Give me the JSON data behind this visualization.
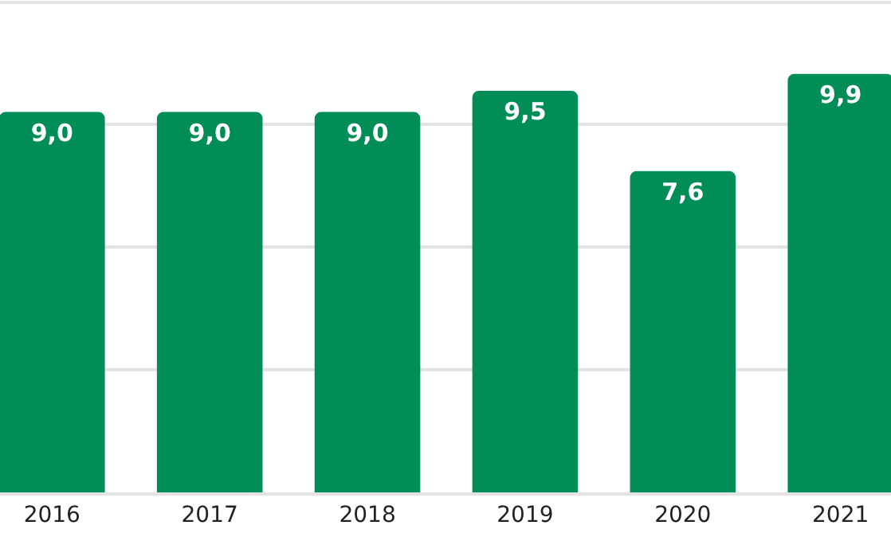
{
  "chart_data": {
    "type": "bar",
    "categories": [
      "2016",
      "2017",
      "2018",
      "2019",
      "2020",
      "2021"
    ],
    "values": [
      9.0,
      9.0,
      9.0,
      9.5,
      7.6,
      9.9
    ],
    "value_labels": [
      "9,0",
      "9,0",
      "9,0",
      "9,5",
      "7,6",
      "9,9"
    ],
    "color": "#008d58",
    "ylim": [
      0,
      11.65
    ],
    "yticks": [
      {
        "value": 2.9,
        "label": null
      },
      {
        "value": 5.8,
        "label": null
      },
      {
        "value": 8.7,
        "label": null
      },
      {
        "value": 11.6,
        "label": null
      }
    ],
    "grid": "y",
    "tick_labels": "x"
  }
}
